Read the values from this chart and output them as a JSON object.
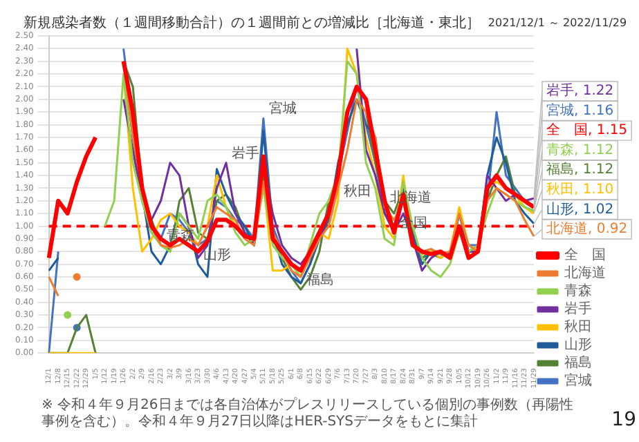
{
  "chart_data": {
    "type": "line",
    "title": "新規感染者数（１週間移動合計）の１週間前との増減比［北海道・東北］",
    "subtitle": "2021/12/1 ～ 2022/11/29",
    "categories": [
      "12/1",
      "12/8",
      "12/15",
      "12/22",
      "12/29",
      "1/5",
      "1/12",
      "1/19",
      "1/26",
      "2/2",
      "2/9",
      "2/16",
      "2/23",
      "3/2",
      "3/9",
      "3/16",
      "3/23",
      "3/30",
      "4/6",
      "4/13",
      "4/20",
      "4/27",
      "5/4",
      "5/11",
      "5/18",
      "5/25",
      "6/1",
      "6/8",
      "6/15",
      "6/22",
      "6/29",
      "7/6",
      "7/13",
      "7/20",
      "7/27",
      "8/3",
      "8/10",
      "8/17",
      "8/24",
      "8/31",
      "9/7",
      "9/14",
      "9/21",
      "9/28",
      "10/5",
      "10/12",
      "10/19",
      "10/26",
      "11/2",
      "11/9",
      "11/16",
      "11/23",
      "11/29"
    ],
    "series": [
      {
        "name": "全　国",
        "color": "#ff0000",
        "values": [
          0.75,
          1.2,
          1.1,
          1.35,
          1.55,
          1.7,
          null,
          null,
          2.3,
          1.9,
          1.3,
          1.0,
          0.9,
          0.85,
          0.9,
          0.85,
          0.8,
          0.88,
          1.05,
          1.05,
          1.0,
          0.92,
          0.9,
          1.55,
          0.9,
          0.8,
          0.7,
          0.65,
          0.8,
          0.95,
          1.1,
          1.4,
          1.9,
          2.1,
          2.0,
          1.6,
          1.2,
          0.95,
          1.25,
          0.85,
          0.8,
          0.78,
          0.8,
          0.75,
          1.0,
          0.75,
          0.8,
          1.3,
          1.4,
          1.3,
          1.25,
          1.2,
          1.15
        ],
        "value_labels": [
          null,
          null,
          null,
          null,
          null,
          null,
          null,
          null,
          null,
          null,
          null,
          null,
          null,
          null,
          null,
          null,
          null,
          null,
          null,
          null,
          null,
          null,
          null,
          null,
          null,
          null,
          null,
          null,
          null,
          null,
          null,
          null,
          null,
          null,
          null,
          null,
          null,
          null,
          null,
          null,
          null,
          null,
          null,
          null,
          null,
          null,
          null,
          null,
          null,
          null,
          null,
          null,
          "全　国, 1.15"
        ]
      },
      {
        "name": "北海道",
        "color": "#ed7d31",
        "values": [
          0.6,
          0.45,
          null,
          0.6,
          null,
          null,
          null,
          null,
          2.3,
          1.7,
          1.3,
          1.0,
          0.85,
          0.83,
          0.85,
          0.9,
          0.85,
          1.0,
          1.15,
          1.1,
          1.05,
          0.9,
          0.85,
          1.35,
          0.95,
          0.8,
          0.65,
          0.6,
          0.75,
          0.9,
          1.0,
          1.3,
          1.6,
          2.0,
          1.9,
          1.7,
          1.15,
          1.05,
          1.2,
          0.85,
          0.8,
          0.82,
          0.78,
          0.8,
          1.1,
          0.85,
          0.8,
          1.2,
          1.3,
          1.25,
          1.2,
          1.05,
          0.92
        ],
        "value_labels": [
          null,
          null,
          null,
          null,
          null,
          null,
          null,
          null,
          null,
          null,
          null,
          null,
          null,
          null,
          null,
          null,
          null,
          null,
          null,
          null,
          null,
          null,
          null,
          null,
          null,
          null,
          null,
          null,
          null,
          null,
          null,
          null,
          null,
          null,
          null,
          null,
          null,
          null,
          null,
          null,
          null,
          null,
          null,
          null,
          null,
          null,
          null,
          null,
          null,
          null,
          null,
          null,
          "北海道, 0.92"
        ]
      },
      {
        "name": "青森",
        "color": "#92d050",
        "values": [
          null,
          null,
          0.3,
          null,
          null,
          null,
          1.0,
          1.2,
          2.2,
          1.5,
          1.2,
          0.95,
          0.85,
          0.8,
          1.1,
          1.0,
          0.9,
          1.2,
          1.25,
          1.15,
          0.95,
          0.85,
          0.9,
          1.3,
          0.85,
          0.75,
          0.7,
          0.6,
          0.85,
          1.1,
          1.2,
          1.4,
          2.3,
          2.2,
          1.5,
          1.3,
          0.9,
          0.85,
          1.35,
          1.0,
          0.75,
          0.65,
          0.6,
          0.7,
          0.95,
          0.8,
          0.85,
          1.1,
          1.3,
          1.25,
          1.2,
          1.15,
          1.12
        ],
        "value_labels": [
          null,
          null,
          null,
          null,
          null,
          null,
          null,
          null,
          null,
          null,
          null,
          null,
          null,
          null,
          null,
          null,
          null,
          null,
          null,
          null,
          null,
          null,
          null,
          null,
          null,
          null,
          null,
          null,
          null,
          null,
          null,
          null,
          null,
          null,
          null,
          null,
          null,
          null,
          null,
          null,
          null,
          null,
          null,
          null,
          null,
          null,
          null,
          null,
          null,
          null,
          null,
          null,
          "青森, 1.12"
        ]
      },
      {
        "name": "岩手",
        "color": "#7030a0",
        "values": [
          null,
          null,
          null,
          null,
          null,
          null,
          null,
          null,
          2.0,
          1.6,
          1.2,
          1.05,
          1.2,
          1.5,
          1.4,
          1.0,
          0.75,
          0.85,
          1.3,
          1.5,
          1.1,
          0.95,
          0.85,
          1.5,
          1.1,
          0.85,
          0.75,
          0.7,
          0.8,
          0.9,
          1.1,
          1.4,
          null,
          2.4,
          1.6,
          1.4,
          1.1,
          0.95,
          1.1,
          0.9,
          0.65,
          0.75,
          0.8,
          0.78,
          1.0,
          0.8,
          0.8,
          1.4,
          1.3,
          1.2,
          1.25,
          1.2,
          1.22
        ],
        "value_labels": [
          null,
          null,
          null,
          null,
          null,
          null,
          null,
          null,
          null,
          null,
          null,
          null,
          null,
          null,
          null,
          null,
          null,
          null,
          null,
          null,
          null,
          null,
          null,
          null,
          null,
          null,
          null,
          null,
          null,
          null,
          null,
          null,
          null,
          null,
          null,
          null,
          null,
          null,
          null,
          null,
          null,
          null,
          null,
          null,
          null,
          null,
          null,
          null,
          null,
          null,
          null,
          null,
          "岩手, 1.22"
        ]
      },
      {
        "name": "秋田",
        "color": "#ffc000",
        "values": [
          0,
          0,
          0,
          0,
          0,
          0,
          null,
          null,
          2.2,
          1.3,
          0.8,
          0.9,
          1.05,
          1.1,
          1.0,
          0.95,
          0.85,
          1.0,
          1.4,
          1.15,
          1.0,
          0.95,
          0.85,
          1.35,
          0.65,
          0.65,
          0.7,
          0.6,
          0.85,
          0.95,
          0.9,
          1.2,
          2.4,
          2.2,
          1.7,
          1.4,
          1.0,
          0.9,
          1.4,
          0.85,
          0.78,
          0.8,
          0.75,
          0.8,
          1.15,
          0.85,
          0.8,
          1.3,
          1.35,
          1.3,
          1.25,
          1.15,
          1.1
        ],
        "value_labels": [
          null,
          null,
          null,
          null,
          null,
          null,
          null,
          null,
          null,
          null,
          null,
          null,
          null,
          null,
          null,
          null,
          null,
          null,
          null,
          null,
          null,
          null,
          null,
          null,
          null,
          null,
          null,
          null,
          null,
          null,
          null,
          null,
          null,
          null,
          null,
          null,
          null,
          null,
          null,
          null,
          null,
          null,
          null,
          null,
          null,
          null,
          null,
          null,
          null,
          null,
          null,
          null,
          "秋田, 1.10"
        ]
      },
      {
        "name": "山形",
        "color": "#1f5c99",
        "values": [
          0.65,
          0.75,
          null,
          null,
          null,
          null,
          null,
          null,
          2.3,
          1.7,
          1.25,
          0.8,
          0.7,
          0.85,
          1.1,
          1.0,
          0.7,
          0.6,
          1.45,
          1.25,
          1.1,
          1.0,
          0.85,
          1.75,
          0.95,
          0.7,
          0.6,
          0.55,
          0.7,
          0.9,
          1.05,
          1.5,
          1.8,
          2.0,
          1.8,
          1.7,
          1.1,
          1.0,
          1.3,
          0.95,
          0.7,
          0.8,
          0.78,
          0.75,
          1.1,
          0.8,
          0.8,
          1.4,
          1.7,
          1.5,
          1.2,
          1.1,
          1.02
        ],
        "value_labels": [
          null,
          null,
          null,
          null,
          null,
          null,
          null,
          null,
          null,
          null,
          null,
          null,
          null,
          null,
          null,
          null,
          null,
          null,
          null,
          null,
          null,
          null,
          null,
          null,
          null,
          null,
          null,
          null,
          null,
          null,
          null,
          null,
          null,
          null,
          null,
          null,
          null,
          null,
          null,
          null,
          null,
          null,
          null,
          null,
          null,
          null,
          null,
          null,
          null,
          null,
          null,
          null,
          "山形, 1.02"
        ]
      },
      {
        "name": "福島",
        "color": "#548235",
        "values": [
          0,
          0,
          0,
          0.2,
          0.3,
          0,
          null,
          null,
          2.3,
          2.1,
          1.3,
          1.05,
          0.85,
          0.8,
          1.2,
          1.3,
          0.95,
          0.9,
          1.2,
          1.25,
          1.15,
          0.95,
          0.9,
          1.4,
          0.9,
          0.75,
          0.6,
          0.5,
          0.6,
          0.8,
          1.2,
          1.4,
          null,
          null,
          1.9,
          1.5,
          1.2,
          1.1,
          1.3,
          0.9,
          0.75,
          0.78,
          0.75,
          0.8,
          1.0,
          0.8,
          0.85,
          1.2,
          1.4,
          1.55,
          1.25,
          1.15,
          1.12
        ],
        "value_labels": [
          null,
          null,
          null,
          null,
          null,
          null,
          null,
          null,
          null,
          null,
          null,
          null,
          null,
          null,
          null,
          null,
          null,
          null,
          null,
          null,
          null,
          null,
          null,
          null,
          null,
          null,
          null,
          null,
          null,
          null,
          null,
          null,
          null,
          null,
          null,
          null,
          null,
          null,
          null,
          null,
          null,
          null,
          null,
          null,
          null,
          null,
          null,
          null,
          null,
          null,
          null,
          null,
          "福島, 1.12"
        ]
      },
      {
        "name": "宮城",
        "color": "#4472c4",
        "values": [
          0,
          0.8,
          null,
          0.2,
          null,
          null,
          null,
          null,
          2.4,
          1.8,
          1.2,
          0.95,
          0.9,
          1.1,
          1.05,
          0.95,
          0.85,
          0.9,
          1.2,
          1.15,
          1.05,
          1.0,
          0.9,
          1.85,
          1.0,
          0.8,
          0.65,
          0.55,
          0.7,
          0.95,
          1.1,
          1.4,
          1.75,
          2.1,
          1.8,
          1.5,
          1.1,
          1.0,
          1.2,
          0.9,
          0.75,
          0.8,
          0.8,
          0.78,
          1.1,
          0.85,
          0.85,
          1.2,
          1.9,
          1.4,
          1.3,
          1.2,
          1.16
        ],
        "value_labels": [
          null,
          null,
          null,
          null,
          null,
          null,
          null,
          null,
          null,
          null,
          null,
          null,
          null,
          null,
          null,
          null,
          null,
          null,
          null,
          null,
          null,
          null,
          null,
          null,
          null,
          null,
          null,
          null,
          null,
          null,
          null,
          null,
          null,
          null,
          null,
          null,
          null,
          null,
          null,
          null,
          null,
          null,
          null,
          null,
          null,
          null,
          null,
          null,
          null,
          null,
          null,
          null,
          "宮城, 1.16"
        ]
      }
    ],
    "ylim": [
      0,
      2.5
    ],
    "yticks": [
      {
        "value": 0,
        "label": "0.00"
      },
      {
        "value": 0.1,
        "label": "0.10"
      },
      {
        "value": 0.2,
        "label": "0.20"
      },
      {
        "value": 0.3,
        "label": "0.30"
      },
      {
        "value": 0.4,
        "label": "0.40"
      },
      {
        "value": 0.5,
        "label": "0.50"
      },
      {
        "value": 0.6,
        "label": "0.60"
      },
      {
        "value": 0.7,
        "label": "0.70"
      },
      {
        "value": 0.8,
        "label": "0.80"
      },
      {
        "value": 0.9,
        "label": "0.90"
      },
      {
        "value": 1.0,
        "label": "1.00"
      },
      {
        "value": 1.1,
        "label": "1.10"
      },
      {
        "value": 1.2,
        "label": "1.20"
      },
      {
        "value": 1.3,
        "label": "1.30"
      },
      {
        "value": 1.4,
        "label": "1.40"
      },
      {
        "value": 1.5,
        "label": "1.50"
      },
      {
        "value": 1.6,
        "label": "1.60"
      },
      {
        "value": 1.7,
        "label": "1.70"
      },
      {
        "value": 1.8,
        "label": "1.80"
      },
      {
        "value": 1.9,
        "label": "1.90"
      },
      {
        "value": 2.0,
        "label": "2.00"
      },
      {
        "value": 2.1,
        "label": "2.10"
      },
      {
        "value": 2.2,
        "label": "2.20"
      },
      {
        "value": 2.3,
        "label": "2.30"
      },
      {
        "value": 2.4,
        "label": "2.40"
      },
      {
        "value": 2.5,
        "label": "2.50"
      }
    ],
    "ref_lines": [
      {
        "axis": "y",
        "value": 1.0,
        "color": "#ff0000",
        "line_style": "dashed"
      }
    ],
    "annotations": [
      {
        "text": "宮城",
        "x": "5/11",
        "y": 1.85
      },
      {
        "text": "岩手",
        "x": "4/13",
        "y": 1.5
      },
      {
        "text": "秋田",
        "x": "7/6",
        "y": 1.2
      },
      {
        "text": "北海道",
        "x": "8/10",
        "y": 1.15
      },
      {
        "text": "全国",
        "x": "8/17",
        "y": 0.95
      },
      {
        "text": "福島",
        "x": "6/8",
        "y": 0.5
      },
      {
        "text": "青森",
        "x": "2/23",
        "y": 0.85
      },
      {
        "text": "山形",
        "x": "3/23",
        "y": 0.7
      },
      "※ 令和４年９月26日までは各自治体がプレスリリースしている個別の事例数（再陽性事例を含む）。令和４年９月27日以降はHER-SYSデータをもとに集計",
      "19"
    ],
    "grid": "y",
    "legend": "bottom right",
    "marker": "none",
    "line_style": "solid"
  }
}
